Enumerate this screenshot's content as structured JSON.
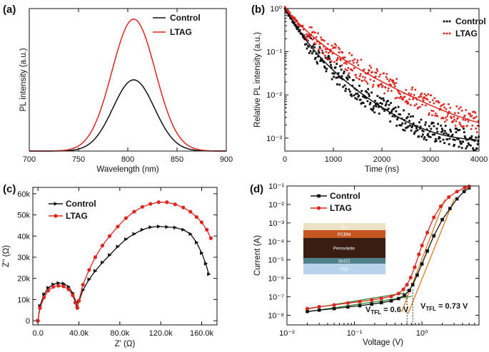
{
  "colors": {
    "control": "#111111",
    "ltag": "#e0251f",
    "fit_green": "#2e8b2e",
    "fit_orange": "#e07a1f"
  },
  "chart_data": [
    {
      "panel": "(a)",
      "type": "line",
      "xlabel": "Wavelength (nm)",
      "ylabel": "PL intensity (a.u.)",
      "xlim": [
        700,
        900
      ],
      "ylim": [
        0,
        1.08
      ],
      "xticks": [
        700,
        750,
        800,
        850,
        900
      ],
      "yticks": [],
      "legend": "top-right",
      "series": [
        {
          "name": "Control",
          "color": "#111111",
          "peak_x": 806,
          "peak_y": 0.54,
          "width": 21
        },
        {
          "name": "LTAG",
          "color": "#e0251f",
          "peak_x": 806,
          "peak_y": 1.0,
          "width": 22
        }
      ]
    },
    {
      "panel": "(b)",
      "type": "scatter",
      "xlabel": "Time (ns)",
      "ylabel": "Relative PL intensity (a.u.)",
      "xlim": [
        0,
        4000
      ],
      "ylim": [
        0.0005,
        1
      ],
      "yscale": "log",
      "xticks": [
        0,
        1000,
        2000,
        3000,
        4000
      ],
      "yticks": [
        0.001,
        0.01,
        0.1,
        1
      ],
      "ytick_labels": [
        "10⁻³",
        "10⁻²",
        "10⁻¹",
        "10⁰"
      ],
      "legend": "top-right",
      "series": [
        {
          "name": "Control",
          "color": "#111111",
          "marker": "square",
          "tau1": 210,
          "a1": 0.8,
          "tau2": 520,
          "a2": 0.2,
          "floor": 0.0008
        },
        {
          "name": "LTAG",
          "color": "#e0251f",
          "marker": "circle",
          "tau1": 280,
          "a1": 0.7,
          "tau2": 720,
          "a2": 0.3,
          "floor": 0.0011
        }
      ]
    },
    {
      "panel": "(c)",
      "type": "line",
      "xlabel": "Z' (Ω)",
      "ylabel": "Z'' (Ω)",
      "xlim": [
        -5000,
        175000
      ],
      "ylim": [
        -2000,
        63000
      ],
      "xticks": [
        0,
        40000,
        80000,
        120000,
        160000
      ],
      "xtick_labels": [
        "0.0",
        "40.0k",
        "80.0k",
        "120.0k",
        "160.0k"
      ],
      "yticks": [
        0,
        10000,
        20000,
        30000,
        40000,
        50000,
        60000
      ],
      "ytick_labels": [
        "0",
        "10k",
        "20k",
        "30k",
        "40k",
        "50k",
        "60k"
      ],
      "legend": "top-left",
      "series": [
        {
          "name": "Control",
          "color": "#111111",
          "marker": "triangle-right",
          "points": [
            [
              0,
              0
            ],
            [
              2000,
              7000
            ],
            [
              6000,
              12500
            ],
            [
              10000,
              15500
            ],
            [
              15000,
              17200
            ],
            [
              20000,
              17800
            ],
            [
              25000,
              17500
            ],
            [
              30000,
              16000
            ],
            [
              34000,
              13000
            ],
            [
              37000,
              9000
            ],
            [
              38500,
              6500
            ],
            [
              40000,
              9000
            ],
            [
              44000,
              14500
            ],
            [
              50000,
              19500
            ],
            [
              56000,
              23500
            ],
            [
              63000,
              27500
            ],
            [
              70000,
              31000
            ],
            [
              78000,
              35000
            ],
            [
              86000,
              38500
            ],
            [
              94000,
              41000
            ],
            [
              102000,
              43000
            ],
            [
              110000,
              44200
            ],
            [
              118000,
              44500
            ],
            [
              126000,
              44300
            ],
            [
              134000,
              44000
            ],
            [
              142000,
              43000
            ],
            [
              149000,
              41000
            ],
            [
              155000,
              37000
            ],
            [
              160000,
              32000
            ],
            [
              164000,
              27000
            ],
            [
              167000,
              22000
            ]
          ]
        },
        {
          "name": "LTAG",
          "color": "#e0251f",
          "marker": "circle",
          "points": [
            [
              0,
              0
            ],
            [
              2000,
              6000
            ],
            [
              6000,
              11000
            ],
            [
              10000,
              14200
            ],
            [
              15000,
              16000
            ],
            [
              20000,
              16500
            ],
            [
              25000,
              16200
            ],
            [
              30000,
              14800
            ],
            [
              34000,
              12000
            ],
            [
              36500,
              8500
            ],
            [
              38500,
              6000
            ],
            [
              40000,
              9500
            ],
            [
              44000,
              17000
            ],
            [
              50000,
              24000
            ],
            [
              56000,
              30000
            ],
            [
              63000,
              35500
            ],
            [
              70000,
              40000
            ],
            [
              78000,
              44500
            ],
            [
              86000,
              48500
            ],
            [
              94000,
              51500
            ],
            [
              102000,
              53800
            ],
            [
              110000,
              55200
            ],
            [
              118000,
              56000
            ],
            [
              126000,
              56000
            ],
            [
              134000,
              55000
            ],
            [
              142000,
              53500
            ],
            [
              149000,
              51500
            ],
            [
              155000,
              49000
            ],
            [
              160000,
              46500
            ],
            [
              165000,
              43000
            ],
            [
              169000,
              39000
            ]
          ]
        }
      ]
    },
    {
      "panel": "(d)",
      "type": "line",
      "xlabel": "Voltage (V)",
      "ylabel": "Current (A)",
      "xscale": "log",
      "yscale": "log",
      "xlim": [
        0.01,
        7
      ],
      "ylim": [
        3e-09,
        0.1
      ],
      "xticks": [
        0.01,
        0.1,
        1
      ],
      "xtick_labels": [
        "10⁻²",
        "10⁻¹",
        "10⁰"
      ],
      "yticks": [
        1e-08,
        1e-07,
        1e-06,
        1e-05,
        0.0001,
        0.001,
        0.01,
        0.1
      ],
      "ytick_labels": [
        "10⁻⁸",
        "10⁻⁷",
        "10⁻⁶",
        "10⁻⁵",
        "10⁻⁴",
        "10⁻³",
        "10⁻²",
        "10⁻¹"
      ],
      "legend": "top-left",
      "annotations": [
        {
          "text_main": "V",
          "text_sub": "TFL",
          "text_tail": " = 0.6 V",
          "color": "#e0251f",
          "x_value": 0.6
        },
        {
          "text_main": "V",
          "text_sub": "TFL",
          "text_tail": " = 0.73 V",
          "color": "#111111",
          "x_value": 0.73
        }
      ],
      "inset_layers": [
        "Au",
        "PCBM",
        "Perovskite",
        "SnO2",
        "ITO"
      ],
      "series": [
        {
          "name": "Control",
          "color": "#111111",
          "marker": "square",
          "points": [
            [
              0.02,
              1.6e-08
            ],
            [
              0.03,
              1.9e-08
            ],
            [
              0.05,
              2.3e-08
            ],
            [
              0.08,
              2.8e-08
            ],
            [
              0.12,
              3.3e-08
            ],
            [
              0.18,
              4e-08
            ],
            [
              0.25,
              4.8e-08
            ],
            [
              0.35,
              6e-08
            ],
            [
              0.45,
              8e-08
            ],
            [
              0.55,
              1.2e-07
            ],
            [
              0.65,
              2.2e-07
            ],
            [
              0.73,
              4.5e-07
            ],
            [
              0.85,
              1.5e-06
            ],
            [
              1.0,
              6e-06
            ],
            [
              1.2,
              3e-05
            ],
            [
              1.5,
              0.0002
            ],
            [
              2.0,
              0.0015
            ],
            [
              2.6,
              0.006
            ],
            [
              3.3,
              0.02
            ],
            [
              4.2,
              0.05
            ],
            [
              5.0,
              0.08
            ]
          ]
        },
        {
          "name": "LTAG",
          "color": "#e0251f",
          "marker": "circle",
          "points": [
            [
              0.02,
              2.3e-08
            ],
            [
              0.03,
              2.9e-08
            ],
            [
              0.05,
              3.6e-08
            ],
            [
              0.08,
              4.6e-08
            ],
            [
              0.12,
              5.5e-08
            ],
            [
              0.18,
              6.7e-08
            ],
            [
              0.25,
              8.2e-08
            ],
            [
              0.35,
              1.05e-07
            ],
            [
              0.45,
              1.5e-07
            ],
            [
              0.53,
              2.5e-07
            ],
            [
              0.6,
              4.5e-07
            ],
            [
              0.68,
              1.1e-06
            ],
            [
              0.78,
              4e-06
            ],
            [
              0.9,
              2e-05
            ],
            [
              1.0,
              6e-05
            ],
            [
              1.2,
              0.0003
            ],
            [
              1.5,
              0.002
            ],
            [
              1.9,
              0.008
            ],
            [
              2.5,
              0.025
            ],
            [
              3.3,
              0.05
            ],
            [
              4.3,
              0.08
            ],
            [
              5.0,
              0.095
            ]
          ]
        }
      ]
    }
  ]
}
